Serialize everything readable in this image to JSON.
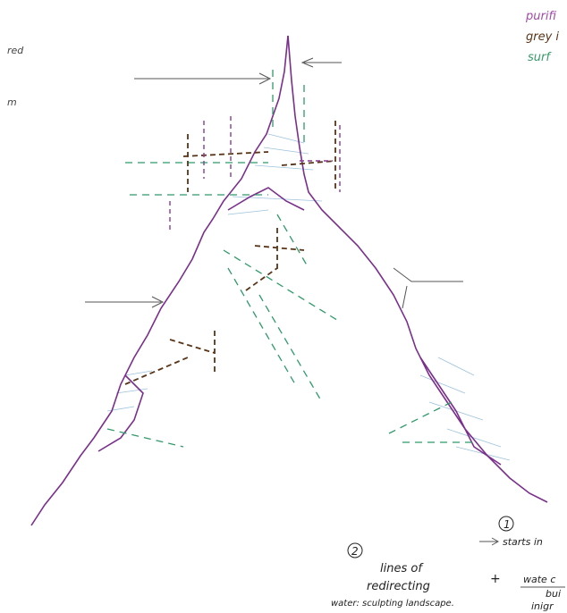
{
  "legend": {
    "items": [
      "purifi",
      "grey i",
      "surf"
    ]
  },
  "side_notes": [
    "red",
    "m"
  ],
  "notes": {
    "two": {
      "number": "2",
      "lines": [
        "lines of",
        "redirecting"
      ],
      "plus": "+",
      "caption": "water: sculpting landscape."
    },
    "one": {
      "number": "1",
      "text": "starts in"
    },
    "right": [
      "wate c",
      "bui",
      "inigr"
    ]
  }
}
